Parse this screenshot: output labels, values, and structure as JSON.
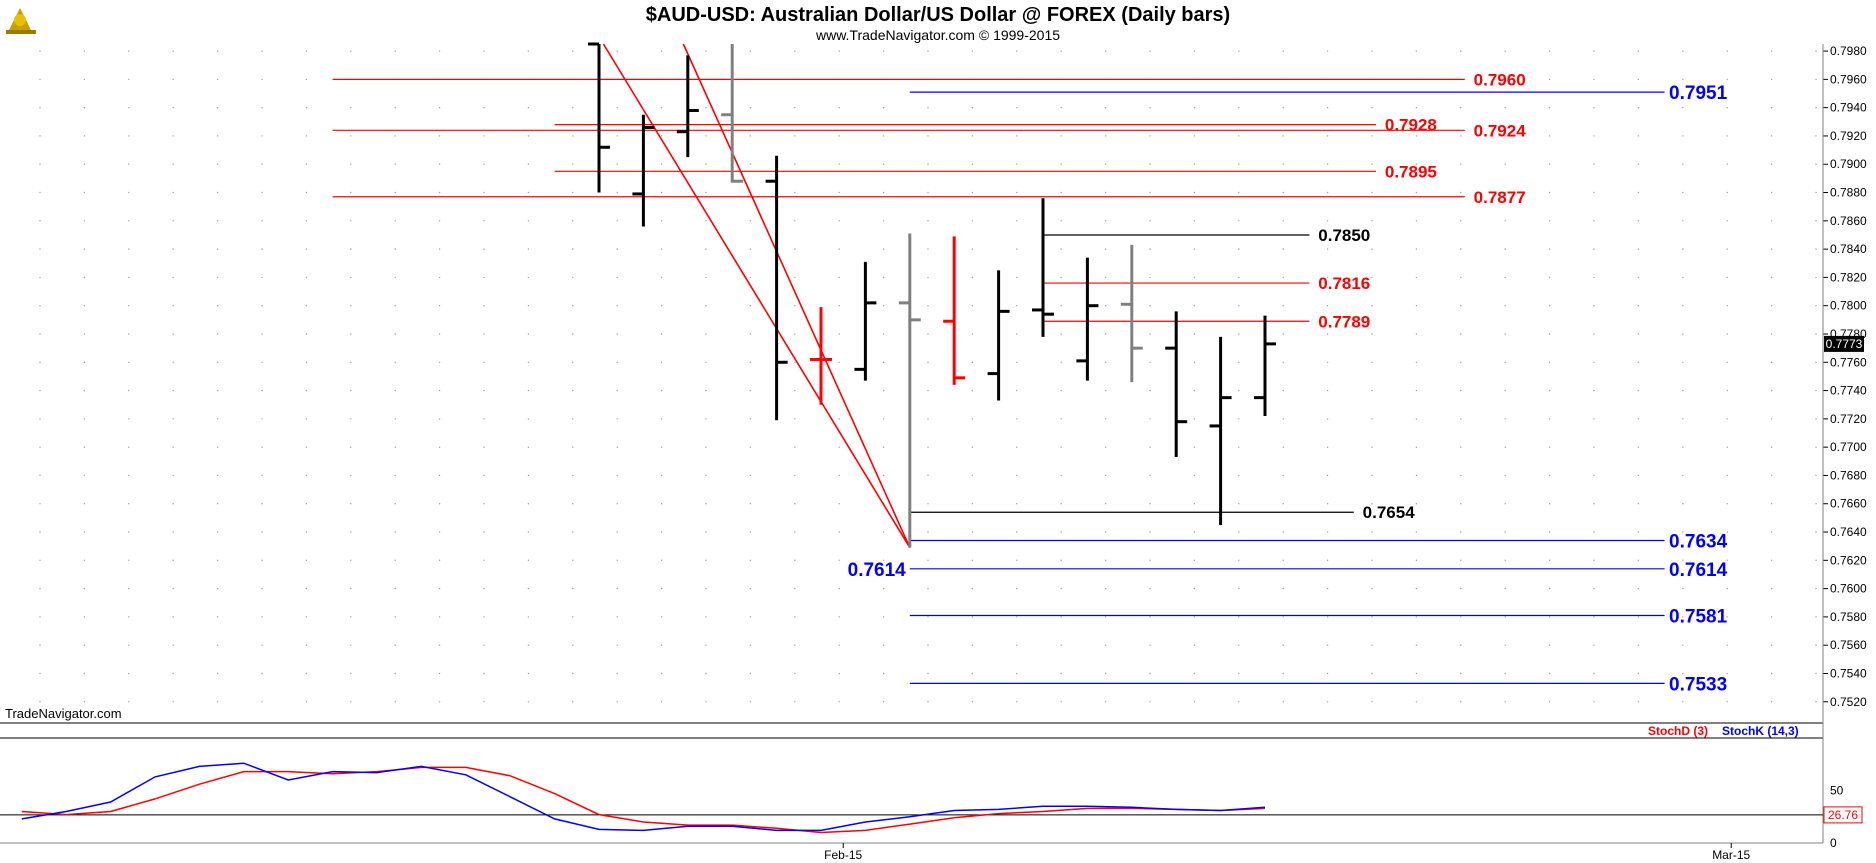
{
  "header": {
    "title": "$AUD-USD:  Australian Dollar/US Dollar @ FOREX  (Daily bars)",
    "subtitle": "www.TradeNavigator.com © 1999-2015",
    "watermark": "TradeNavigator.com",
    "logo_icon": "trade-navigator-logo-icon"
  },
  "colors": {
    "bar": "#000000",
    "bar_red": "#ff0000",
    "bar_gray": "#808080",
    "red_level": "#ff0000",
    "blue_level": "#0000ff",
    "black_level": "#000000",
    "stochD": "#ff0000",
    "stochK": "#0000ff"
  },
  "chart_data": [
    {
      "type": "ohlc",
      "title": "$AUD-USD:  Australian Dollar/US Dollar @ FOREX  (Daily bars)",
      "ylim": [
        0.7505,
        0.7985
      ],
      "y_ticks": [
        "0.7520",
        "0.7540",
        "0.7560",
        "0.7580",
        "0.7600",
        "0.7620",
        "0.7640",
        "0.7660",
        "0.7680",
        "0.7700",
        "0.7720",
        "0.7740",
        "0.7760",
        "0.7780",
        "0.7800",
        "0.7820",
        "0.7840",
        "0.7860",
        "0.7880",
        "0.7900",
        "0.7920",
        "0.7940",
        "0.7960",
        "0.7980"
      ],
      "x_labels": [
        {
          "text": "Feb-15",
          "index": 5.5
        },
        {
          "text": "Mar-15",
          "index": 25.5
        }
      ],
      "last_price": "0.7773",
      "bars": [
        {
          "i": 0,
          "open": 0.7985,
          "high": 0.7985,
          "low": 0.788,
          "close": 0.7912,
          "color": "black"
        },
        {
          "i": 1,
          "open": 0.7879,
          "high": 0.7935,
          "low": 0.7856,
          "close": 0.7926,
          "color": "black"
        },
        {
          "i": 2,
          "open": 0.7923,
          "high": 0.7977,
          "low": 0.7905,
          "close": 0.7938,
          "color": "black"
        },
        {
          "i": 3,
          "open": 0.7935,
          "high": 0.7985,
          "low": 0.7887,
          "close": 0.7888,
          "color": "gray"
        },
        {
          "i": 4,
          "open": 0.7888,
          "high": 0.7906,
          "low": 0.7719,
          "close": 0.776,
          "color": "black"
        },
        {
          "i": 5,
          "open": 0.7762,
          "high": 0.7799,
          "low": 0.773,
          "close": 0.7762,
          "color": "red"
        },
        {
          "i": 6,
          "open": 0.7755,
          "high": 0.7831,
          "low": 0.7747,
          "close": 0.7802,
          "color": "black"
        },
        {
          "i": 7,
          "open": 0.7802,
          "high": 0.7851,
          "low": 0.7629,
          "close": 0.779,
          "color": "gray"
        },
        {
          "i": 8,
          "open": 0.7789,
          "high": 0.7849,
          "low": 0.7744,
          "close": 0.7749,
          "color": "red"
        },
        {
          "i": 9,
          "open": 0.7752,
          "high": 0.7825,
          "low": 0.7733,
          "close": 0.7796,
          "color": "black"
        },
        {
          "i": 10,
          "open": 0.7797,
          "high": 0.7876,
          "low": 0.7778,
          "close": 0.7794,
          "color": "black"
        },
        {
          "i": 11,
          "open": 0.7761,
          "high": 0.7834,
          "low": 0.7747,
          "close": 0.78,
          "color": "black"
        },
        {
          "i": 12,
          "open": 0.7801,
          "high": 0.7843,
          "low": 0.7746,
          "close": 0.777,
          "color": "gray"
        },
        {
          "i": 13,
          "open": 0.777,
          "high": 0.7796,
          "low": 0.7693,
          "close": 0.7718,
          "color": "black"
        },
        {
          "i": 14,
          "open": 0.7715,
          "high": 0.7778,
          "low": 0.7645,
          "close": 0.7735,
          "color": "black"
        },
        {
          "i": 15,
          "open": 0.7735,
          "high": 0.7793,
          "low": 0.7722,
          "close": 0.7773,
          "color": "black"
        }
      ],
      "trendlines": [
        {
          "from": {
            "i": 0.1,
            "price": 0.7985
          },
          "to": {
            "i": 7.0,
            "price": 0.7629
          },
          "color": "red"
        },
        {
          "from": {
            "i": 1.9,
            "price": 0.7985
          },
          "to": {
            "i": 7.0,
            "price": 0.7629
          },
          "color": "red"
        }
      ],
      "levels": [
        {
          "label": "0.7960",
          "price": 0.796,
          "from_i": -6.0,
          "to_i": 19.5,
          "color": "red",
          "label_i": 19.7
        },
        {
          "label": "0.7951",
          "price": 0.7951,
          "from_i": 7.0,
          "to_i": 24.0,
          "color": "blue",
          "label_i": 24.1
        },
        {
          "label": "0.7928",
          "price": 0.7928,
          "from_i": -1.0,
          "to_i": 17.5,
          "color": "red",
          "label_i": 17.7
        },
        {
          "label": "0.7924",
          "price": 0.7924,
          "from_i": -6.0,
          "to_i": 19.5,
          "color": "red",
          "label_i": 19.7
        },
        {
          "label": "0.7895",
          "price": 0.7895,
          "from_i": -1.0,
          "to_i": 17.5,
          "color": "red",
          "label_i": 17.7
        },
        {
          "label": "0.7877",
          "price": 0.7877,
          "from_i": -6.0,
          "to_i": 19.5,
          "color": "red",
          "label_i": 19.7
        },
        {
          "label": "0.7850",
          "price": 0.785,
          "from_i": 10.0,
          "to_i": 16.0,
          "color": "black",
          "label_i": 16.2
        },
        {
          "label": "0.7816",
          "price": 0.7816,
          "from_i": 10.0,
          "to_i": 16.0,
          "color": "red",
          "label_i": 16.2
        },
        {
          "label": "0.7789",
          "price": 0.7789,
          "from_i": 10.0,
          "to_i": 16.0,
          "color": "red",
          "label_i": 16.2
        },
        {
          "label": "0.7654",
          "price": 0.7654,
          "from_i": 7.0,
          "to_i": 17.0,
          "color": "black",
          "label_i": 17.2
        },
        {
          "label": "0.7634",
          "price": 0.7634,
          "from_i": 7.0,
          "to_i": 24.0,
          "color": "blue",
          "label_i": 24.1
        },
        {
          "label": "0.7614",
          "price": 0.7614,
          "from_i": 7.0,
          "to_i": 24.0,
          "color": "blue",
          "label_i": 24.1
        },
        {
          "label": "0.7581",
          "price": 0.7581,
          "from_i": 7.0,
          "to_i": 24.0,
          "color": "blue",
          "label_i": 24.1
        },
        {
          "label": "0.7533",
          "price": 0.7533,
          "from_i": 7.0,
          "to_i": 24.0,
          "color": "blue",
          "label_i": 24.1
        }
      ],
      "left_labels": [
        {
          "label": "0.7614",
          "price": 0.7614,
          "i": 5.6,
          "color": "blue"
        }
      ]
    },
    {
      "type": "line",
      "title": "",
      "ylim": [
        0,
        100
      ],
      "y_ticks": [
        "0",
        "50"
      ],
      "legend": [
        "StochD (3)",
        "StochK (14,3)"
      ],
      "last_value": "26.76",
      "reference_line": 26.76,
      "x": [
        -13,
        -12,
        -11,
        -10,
        -9,
        -8,
        -7,
        -6,
        -5,
        -4,
        -3,
        -2,
        -1,
        0,
        1,
        2,
        3,
        4,
        5,
        6,
        7,
        8,
        9,
        10,
        11,
        12,
        13,
        14,
        15
      ],
      "series": [
        {
          "name": "StochD (3)",
          "values": [
            30,
            27,
            30,
            42,
            56,
            68,
            68,
            66,
            68,
            72,
            72,
            64,
            47,
            27,
            20,
            17,
            17,
            14,
            10,
            12,
            18,
            24,
            28,
            30,
            33,
            33,
            32,
            31,
            33
          ]
        },
        {
          "name": "StochK (14,3)",
          "values": [
            23,
            30,
            39,
            63,
            73,
            76,
            60,
            68,
            67,
            73,
            65,
            44,
            23,
            13,
            12,
            16,
            16,
            12,
            12,
            20,
            25,
            31,
            32,
            35,
            35,
            34,
            32,
            31,
            34
          ]
        }
      ]
    }
  ]
}
